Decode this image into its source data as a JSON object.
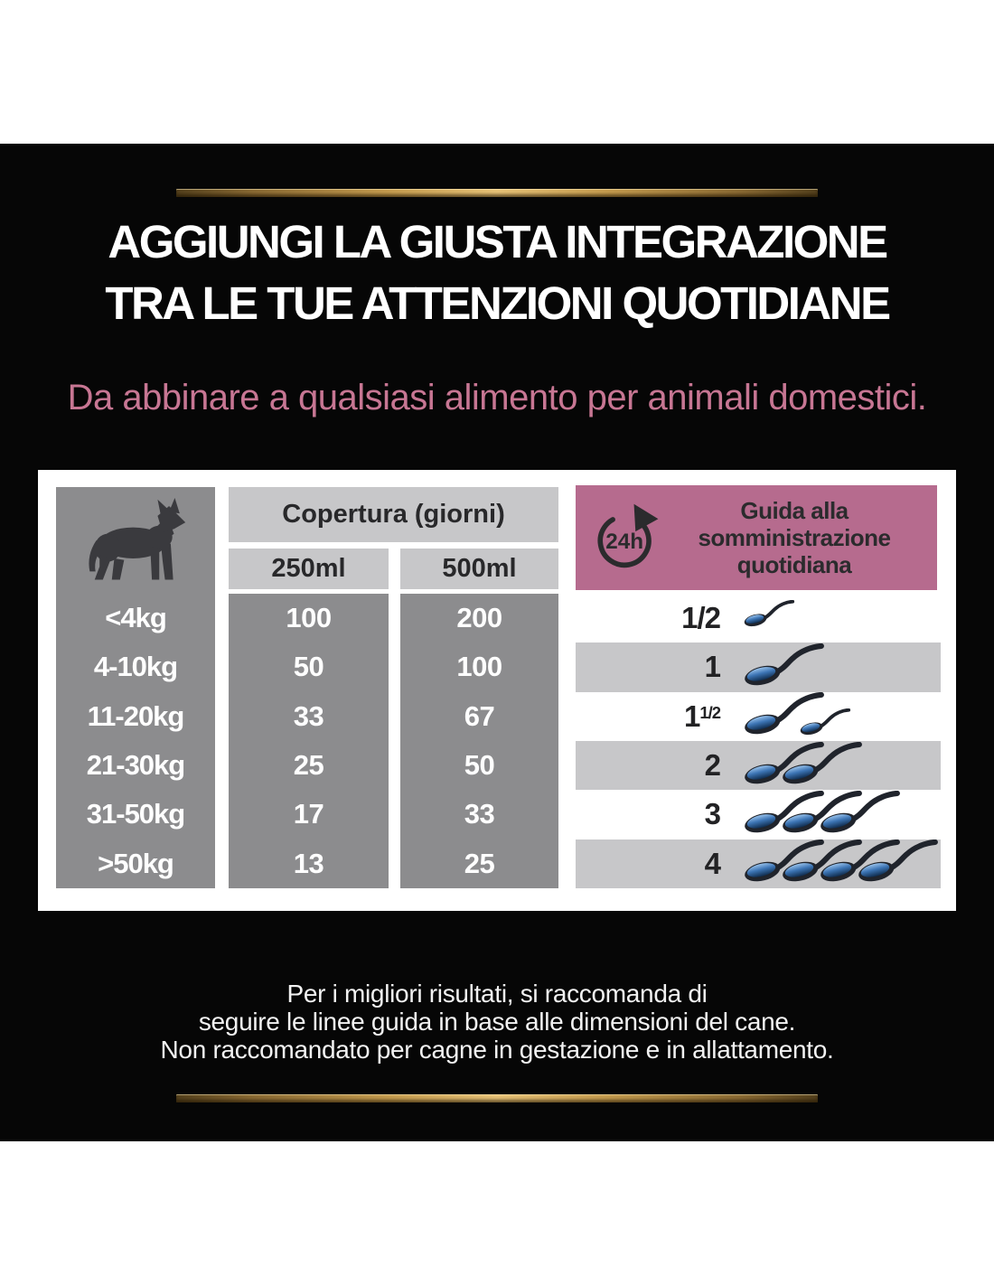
{
  "colors": {
    "card_bg": "#060606",
    "gold": "#c59c4e",
    "subtitle_pink": "#c77693",
    "guide_header_pink": "#b66b8e",
    "column_gray": "#8c8c8e",
    "band_gray": "#c7c7c9",
    "spoon_blue": "#3c74b4"
  },
  "header": {
    "title_line1": "AGGIUNGI LA GIUSTA INTEGRAZIONE",
    "title_line2": "TRA LE TUE ATTENZIONI QUOTIDIANE",
    "subtitle": "Da abbinare a qualsiasi alimento per animali domestici."
  },
  "table": {
    "coverage_header": "Copertura (giorni)",
    "columns": [
      "250ml",
      "500ml"
    ],
    "guide_icon_label": "24h",
    "guide_header_lines": [
      "Guida alla",
      "somministrazione",
      "quotidiana"
    ],
    "rows": [
      {
        "weight": "<4kg",
        "ml250": "100",
        "ml500": "200",
        "portion": "1/2",
        "portion_sup": "",
        "spoons": [
          "small"
        ]
      },
      {
        "weight": "4-10kg",
        "ml250": "50",
        "ml500": "100",
        "portion": "1",
        "portion_sup": "",
        "spoons": [
          "large"
        ]
      },
      {
        "weight": "11-20kg",
        "ml250": "33",
        "ml500": "67",
        "portion": "1",
        "portion_sup": "1/2",
        "spoons": [
          "large",
          "small"
        ]
      },
      {
        "weight": "21-30kg",
        "ml250": "25",
        "ml500": "50",
        "portion": "2",
        "portion_sup": "",
        "spoons": [
          "large",
          "large"
        ]
      },
      {
        "weight": "31-50kg",
        "ml250": "17",
        "ml500": "33",
        "portion": "3",
        "portion_sup": "",
        "spoons": [
          "large",
          "large",
          "large"
        ]
      },
      {
        "weight": ">50kg",
        "ml250": "13",
        "ml500": "25",
        "portion": "4",
        "portion_sup": "",
        "spoons": [
          "large",
          "large",
          "large",
          "large"
        ]
      }
    ]
  },
  "footnote": {
    "line1": "Per i migliori risultati, si raccomanda di",
    "line2": "seguire le linee guida in base alle dimensioni del cane.",
    "line3": "Non raccomandato per cagne in gestazione e in allattamento."
  }
}
